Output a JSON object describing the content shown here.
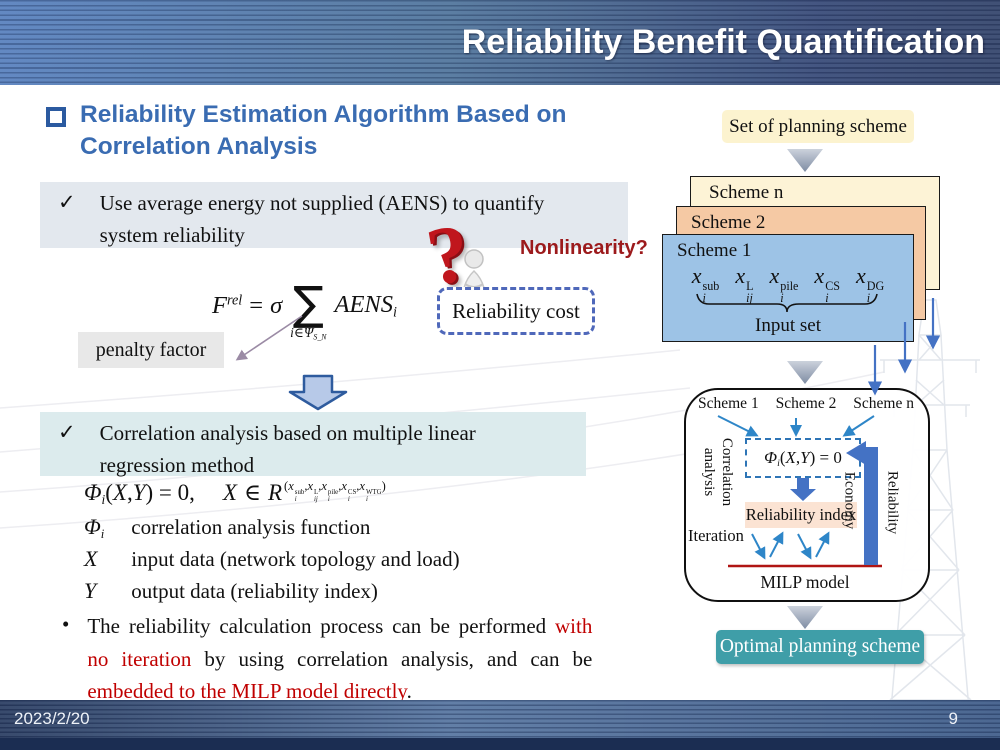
{
  "slide": {
    "title": "Reliability Benefit Quantification",
    "footer_date": "2023/2/20",
    "page_number": "9"
  },
  "colors": {
    "heading_blue": "#3a6cb2",
    "accent_red": "#c00000",
    "dark_red": "#9c1a1c",
    "question_red": "#c0161d",
    "teal_box": "#3f9ea8",
    "card_blue": "#9dc3e6",
    "card_orange": "#f5c9a4",
    "card_cream": "#fdf3d6",
    "arrow_blue": "#4472c4",
    "dashed_blue": "#2e75b6"
  },
  "heading": {
    "text": "Reliability Estimation Algorithm Based on Correlation Analysis"
  },
  "point_aens": {
    "check": "✓",
    "text": "Use average energy not supplied (AENS) to quantify system reliability"
  },
  "nonlinearity": {
    "mark": "?",
    "label": "Nonlinearity?"
  },
  "reliability_cost": {
    "label": "Reliability cost"
  },
  "penalty_factor": {
    "label": "penalty factor"
  },
  "formula_aens": {
    "lhs": [
      {
        "b": "F",
        "sup": "rel",
        "cls": "si"
      },
      {
        "t": "=",
        "cls": "rel"
      },
      {
        "t": "σ",
        "cls": "it"
      }
    ],
    "sum_symbol": "∑",
    "sum_limit": [
      {
        "t": "i",
        "cls": "it"
      },
      {
        "t": "∈"
      },
      {
        "b": "Ψ",
        "bcls": "ro",
        "sub": "S_N",
        "du": true
      }
    ],
    "rhs": [
      {
        "b": "AENS",
        "sub": "i"
      }
    ]
  },
  "point_corr": {
    "check": "✓",
    "text": "Correlation analysis based on multiple linear regression method"
  },
  "formula_phi": {
    "main": [
      {
        "b": "Φ",
        "bcls": "ro",
        "sub": "i"
      },
      {
        "t": "("
      },
      {
        "t": "X",
        "cls": "it"
      },
      {
        "t": ","
      },
      {
        "t": "Y",
        "cls": "it"
      },
      {
        "t": ") = 0,"
      },
      {
        "t": "X",
        "cls": "it gapl"
      },
      {
        "t": "∈",
        "cls": "rel"
      },
      {
        "t": "R",
        "cls": "it"
      }
    ],
    "sup_cluster": [
      {
        "t": "("
      },
      {
        "b": "x",
        "sup": "sub",
        "sub": "i"
      },
      {
        "t": ","
      },
      {
        "b": "x",
        "sup": "L",
        "sub": "ij"
      },
      {
        "t": ","
      },
      {
        "b": "x",
        "sup": "pile",
        "sub": "i"
      },
      {
        "t": ","
      },
      {
        "b": "x",
        "sup": "CS",
        "sub": "i"
      },
      {
        "t": ","
      },
      {
        "b": "x",
        "sup": "WTG",
        "sub": "i"
      },
      {
        "t": ")"
      }
    ]
  },
  "definitions": [
    {
      "sym": [
        {
          "b": "Φ",
          "bcls": "ro",
          "sub": "i"
        }
      ],
      "text": "correlation analysis function"
    },
    {
      "sym": [
        {
          "t": "X",
          "cls": "it"
        }
      ],
      "text": "input data (network topology and load)"
    },
    {
      "sym": [
        {
          "t": "Y",
          "cls": "it"
        }
      ],
      "text": "output data (reliability index)"
    }
  ],
  "conclusion": {
    "bullet": "•",
    "segments": [
      {
        "t": "The reliability calculation process can be performed "
      },
      {
        "t": "with no iteration",
        "red": true
      },
      {
        "t": " by using correlation analysis, and can be "
      },
      {
        "t": "embedded to the MILP model directly",
        "red": true
      },
      {
        "t": "."
      }
    ]
  },
  "pipeline": {
    "set_label": "Set of planning scheme",
    "scheme_n": "Scheme n",
    "scheme_2": "Scheme 2",
    "scheme_1": "Scheme 1",
    "scheme1_vars": [
      {
        "b": "x",
        "sup": "sub",
        "sub": "i"
      },
      {
        "b": "x",
        "sup": "L",
        "sub": "ij"
      },
      {
        "b": "x",
        "sup": "pile",
        "sub": "i"
      },
      {
        "b": "x",
        "sup": "CS",
        "sub": "i"
      },
      {
        "b": "x",
        "sup": "DG",
        "sub": "i"
      }
    ],
    "input_set": "Input set",
    "optimal": "Optimal planning scheme"
  },
  "flowbox": {
    "schemes": [
      "Scheme 1",
      "Scheme 2",
      "Scheme n"
    ],
    "phi": [
      {
        "b": "Φ",
        "bcls": "ro",
        "sub": "i"
      },
      {
        "t": "("
      },
      {
        "t": "X",
        "cls": "it"
      },
      {
        "t": ","
      },
      {
        "t": "Y",
        "cls": "it"
      },
      {
        "t": ") = 0"
      }
    ],
    "correlation_label": "Correlation analysis",
    "reliability_index": "Reliability index",
    "iteration": "Iteration",
    "milp": "MILP model",
    "economy": "Economy",
    "reliability": "Reliability"
  }
}
